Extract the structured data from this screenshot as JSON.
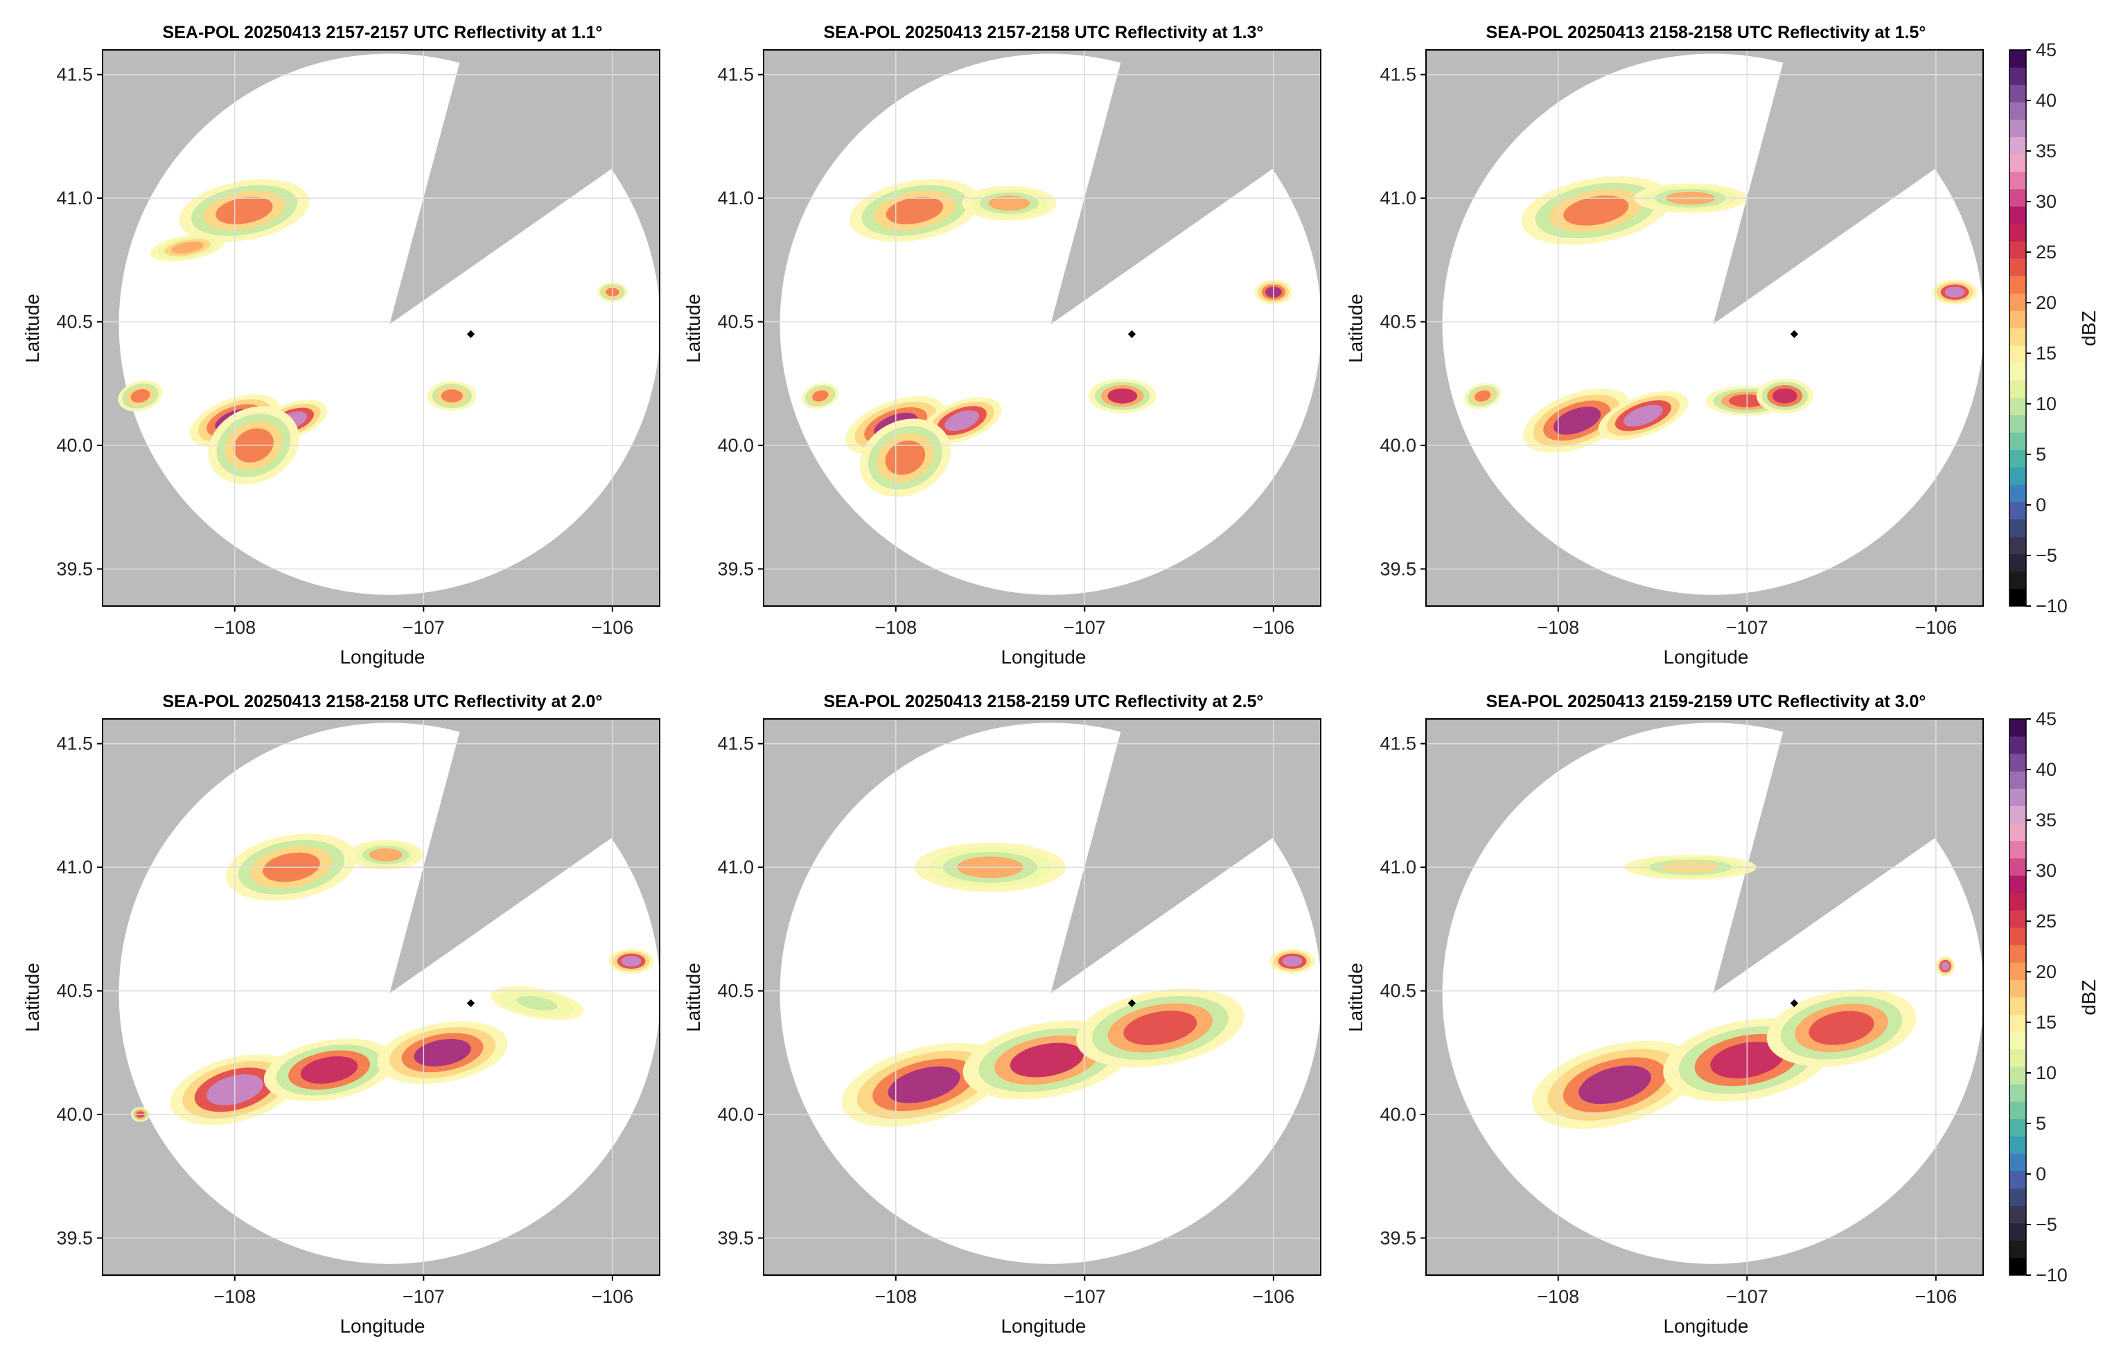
{
  "colors": {
    "outside_range": "#bbbbbb",
    "no_echo": "#ffffff",
    "grid": "#dddddd",
    "radar_marker": "#000000"
  },
  "chart_data": [
    {
      "type": "heatmap",
      "title": "SEA-POL 20250413 2157-2157 UTC Reflectivity at 1.1°",
      "xlabel": "Longitude",
      "ylabel": "Latitude",
      "xlim": [
        -108.7,
        -105.75
      ],
      "ylim": [
        39.35,
        41.6
      ],
      "xticks": [
        -108,
        -107,
        -106
      ],
      "yticks": [
        39.5,
        40.0,
        40.5,
        41.0,
        41.5
      ],
      "radar_site": {
        "lon": -106.75,
        "lat": 40.45
      },
      "grid": true
    },
    {
      "type": "heatmap",
      "title": "SEA-POL 20250413 2157-2158 UTC Reflectivity at 1.3°",
      "xlabel": "Longitude",
      "ylabel": "Latitude",
      "xlim": [
        -108.7,
        -105.75
      ],
      "ylim": [
        39.35,
        41.6
      ],
      "xticks": [
        -108,
        -107,
        -106
      ],
      "yticks": [
        39.5,
        40.0,
        40.5,
        41.0,
        41.5
      ],
      "radar_site": {
        "lon": -106.75,
        "lat": 40.45
      },
      "grid": true
    },
    {
      "type": "heatmap",
      "title": "SEA-POL 20250413 2158-2158 UTC Reflectivity at 1.5°",
      "xlabel": "Longitude",
      "ylabel": "Latitude",
      "xlim": [
        -108.7,
        -105.75
      ],
      "ylim": [
        39.35,
        41.6
      ],
      "xticks": [
        -108,
        -107,
        -106
      ],
      "yticks": [
        39.5,
        40.0,
        40.5,
        41.0,
        41.5
      ],
      "radar_site": {
        "lon": -106.75,
        "lat": 40.45
      },
      "grid": true
    },
    {
      "type": "heatmap",
      "title": "SEA-POL 20250413 2158-2158 UTC Reflectivity at 2.0°",
      "xlabel": "Longitude",
      "ylabel": "Latitude",
      "xlim": [
        -108.7,
        -105.75
      ],
      "ylim": [
        39.35,
        41.6
      ],
      "xticks": [
        -108,
        -107,
        -106
      ],
      "yticks": [
        39.5,
        40.0,
        40.5,
        41.0,
        41.5
      ],
      "radar_site": {
        "lon": -106.75,
        "lat": 40.45
      },
      "grid": true
    },
    {
      "type": "heatmap",
      "title": "SEA-POL 20250413 2158-2159 UTC Reflectivity at 2.5°",
      "xlabel": "Longitude",
      "ylabel": "Latitude",
      "xlim": [
        -108.7,
        -105.75
      ],
      "ylim": [
        39.35,
        41.6
      ],
      "xticks": [
        -108,
        -107,
        -106
      ],
      "yticks": [
        39.5,
        40.0,
        40.5,
        41.0,
        41.5
      ],
      "radar_site": {
        "lon": -106.75,
        "lat": 40.45
      },
      "grid": true
    },
    {
      "type": "heatmap",
      "title": "SEA-POL 20250413 2159-2159 UTC Reflectivity at 3.0°",
      "xlabel": "Longitude",
      "ylabel": "Latitude",
      "xlim": [
        -108.7,
        -105.75
      ],
      "ylim": [
        39.35,
        41.6
      ],
      "xticks": [
        -108,
        -107,
        -106
      ],
      "yticks": [
        39.5,
        40.0,
        40.5,
        41.0,
        41.5
      ],
      "radar_site": {
        "lon": -106.75,
        "lat": 40.45
      },
      "grid": true
    }
  ],
  "colorbar": {
    "label": "dBZ",
    "range": [
      -10,
      45
    ],
    "ticks": [
      -10,
      -5,
      0,
      5,
      10,
      15,
      20,
      25,
      30,
      35,
      40,
      45
    ],
    "colors": [
      "#000000",
      "#1a1a1a",
      "#2a2438",
      "#3a3550",
      "#3b4a78",
      "#4a5fa8",
      "#3e7fbf",
      "#3a9fb3",
      "#4cb3a5",
      "#74c7a2",
      "#9cd6a4",
      "#c2e5a0",
      "#e2f19d",
      "#f5f8b0",
      "#fdf0a0",
      "#fddc86",
      "#fdbf6f",
      "#fa9d5a",
      "#f37b4a",
      "#e55545",
      "#d73c4c",
      "#c42255",
      "#b61b6a",
      "#d24a8a",
      "#e57aa8",
      "#eea5c4",
      "#d9a6cf",
      "#b98cc4",
      "#9a6fb1",
      "#7a4d98",
      "#5a2a78",
      "#3c0c55"
    ]
  }
}
